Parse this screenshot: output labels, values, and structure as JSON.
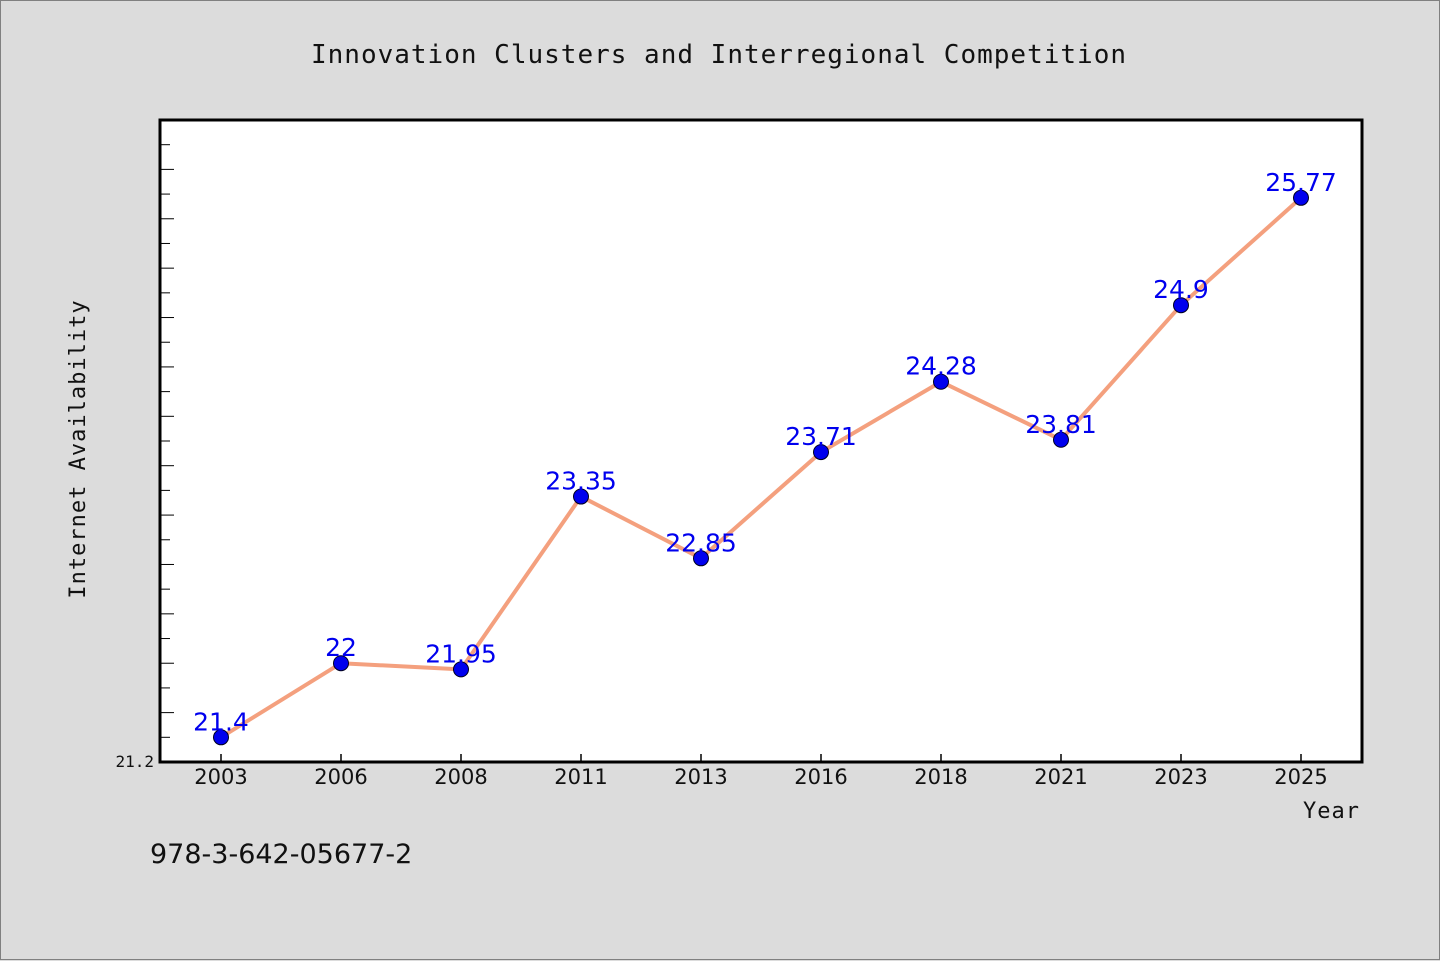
{
  "chart_data": {
    "type": "line",
    "title": "Innovation Clusters and Interregional Competition",
    "xlabel": "Year",
    "ylabel": "Internet Availability",
    "x": [
      "2003",
      "2006",
      "2008",
      "2011",
      "2013",
      "2016",
      "2018",
      "2021",
      "2023",
      "2025"
    ],
    "series": [
      {
        "values": [
          21.4,
          22,
          21.95,
          23.35,
          22.85,
          23.71,
          24.28,
          23.81,
          24.9,
          25.77
        ]
      }
    ],
    "data_labels": [
      "21.4",
      "22",
      "21.95",
      "23.35",
      "22.85",
      "23.71",
      "24.28",
      "23.81",
      "24.9",
      "25.77"
    ],
    "ytick_labels": [
      "21.2"
    ],
    "ylim": [
      21.2,
      26.4
    ],
    "grid": false,
    "legend": "none",
    "line_color": "#f4a07e",
    "marker_color": "#0000ee",
    "label_color": "#0000ee"
  },
  "footer": {
    "isbn": "978-3-642-05677-2"
  }
}
